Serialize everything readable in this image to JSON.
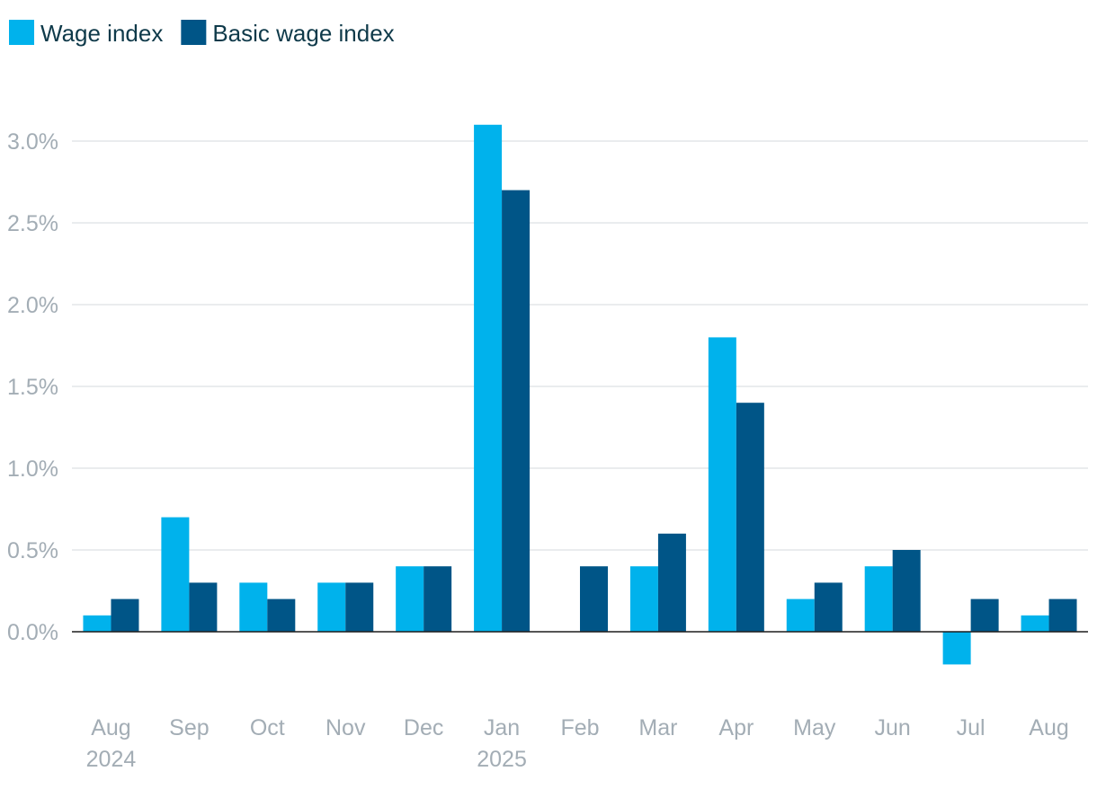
{
  "chart_data": {
    "type": "bar",
    "categories": [
      "Aug 2024",
      "Sep",
      "Oct",
      "Nov",
      "Dec",
      "Jan 2025",
      "Feb",
      "Mar",
      "Apr",
      "May",
      "Jun",
      "Jul",
      "Aug"
    ],
    "category_lines": [
      [
        "Aug",
        "2024"
      ],
      [
        "Sep"
      ],
      [
        "Oct"
      ],
      [
        "Nov"
      ],
      [
        "Dec"
      ],
      [
        "Jan",
        "2025"
      ],
      [
        "Feb"
      ],
      [
        "Mar"
      ],
      [
        "Apr"
      ],
      [
        "May"
      ],
      [
        "Jun"
      ],
      [
        "Jul"
      ],
      [
        "Aug"
      ]
    ],
    "series": [
      {
        "name": "Wage index",
        "color": "#00b2ec",
        "values": [
          0.1,
          0.7,
          0.3,
          0.3,
          0.4,
          3.1,
          0.0,
          0.4,
          1.8,
          0.2,
          0.4,
          -0.2,
          0.1
        ]
      },
      {
        "name": "Basic wage index",
        "color": "#005587",
        "values": [
          0.2,
          0.3,
          0.2,
          0.3,
          0.4,
          2.7,
          0.4,
          0.6,
          1.4,
          0.3,
          0.5,
          0.2,
          0.2
        ]
      }
    ],
    "yticks": [
      0.0,
      0.5,
      1.0,
      1.5,
      2.0,
      2.5,
      3.0
    ],
    "ytick_labels": [
      "0.0%",
      "0.5%",
      "1.0%",
      "1.5%",
      "2.0%",
      "2.5%",
      "3.0%"
    ],
    "ylim": [
      -0.45,
      3.3
    ],
    "title": "",
    "xlabel": "",
    "ylabel": "",
    "grid": true,
    "legend_position": "top-left"
  }
}
